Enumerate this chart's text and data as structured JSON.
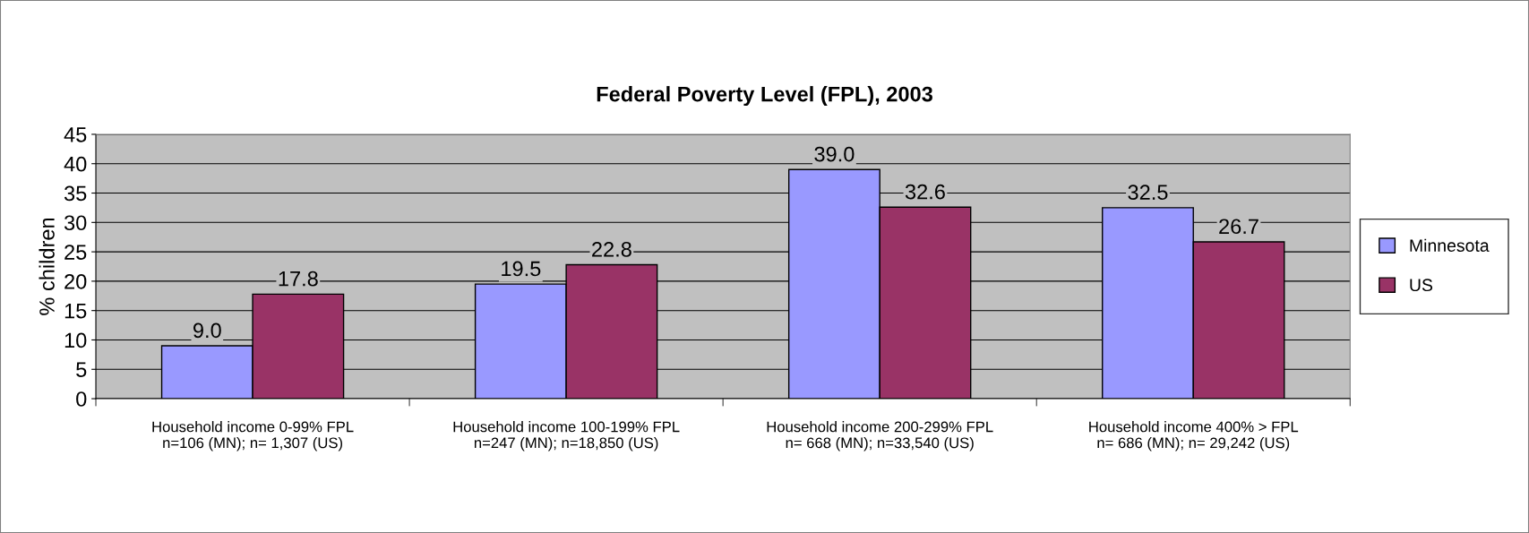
{
  "chart_data": {
    "type": "bar",
    "title": "Federal Poverty Level (FPL), 2003",
    "ylabel": "% children",
    "categories": [
      "Household income 0-99% FPL\nn=106 (MN); n= 1,307 (US)",
      "Household income 100-199% FPL\nn=247 (MN); n=18,850 (US)",
      "Household income 200-299% FPL\nn= 668 (MN); n=33,540 (US)",
      "Household income 400% > FPL\nn= 686 (MN); n= 29,242 (US)"
    ],
    "series": [
      {
        "name": "Minnesota",
        "color": "#9999ff",
        "values": [
          9.0,
          19.5,
          39.0,
          32.5
        ],
        "value_labels": [
          "9.0",
          "19.5",
          "39.0",
          "32.5"
        ]
      },
      {
        "name": "US",
        "color": "#993366",
        "values": [
          17.8,
          22.8,
          32.6,
          26.7
        ],
        "value_labels": [
          "17.8",
          "22.8",
          "32.6",
          "26.7"
        ]
      }
    ],
    "ylim": [
      0,
      45
    ],
    "yticks": [
      0,
      5,
      10,
      15,
      20,
      25,
      30,
      35,
      40,
      45
    ],
    "grid": "y",
    "legend": "right"
  }
}
